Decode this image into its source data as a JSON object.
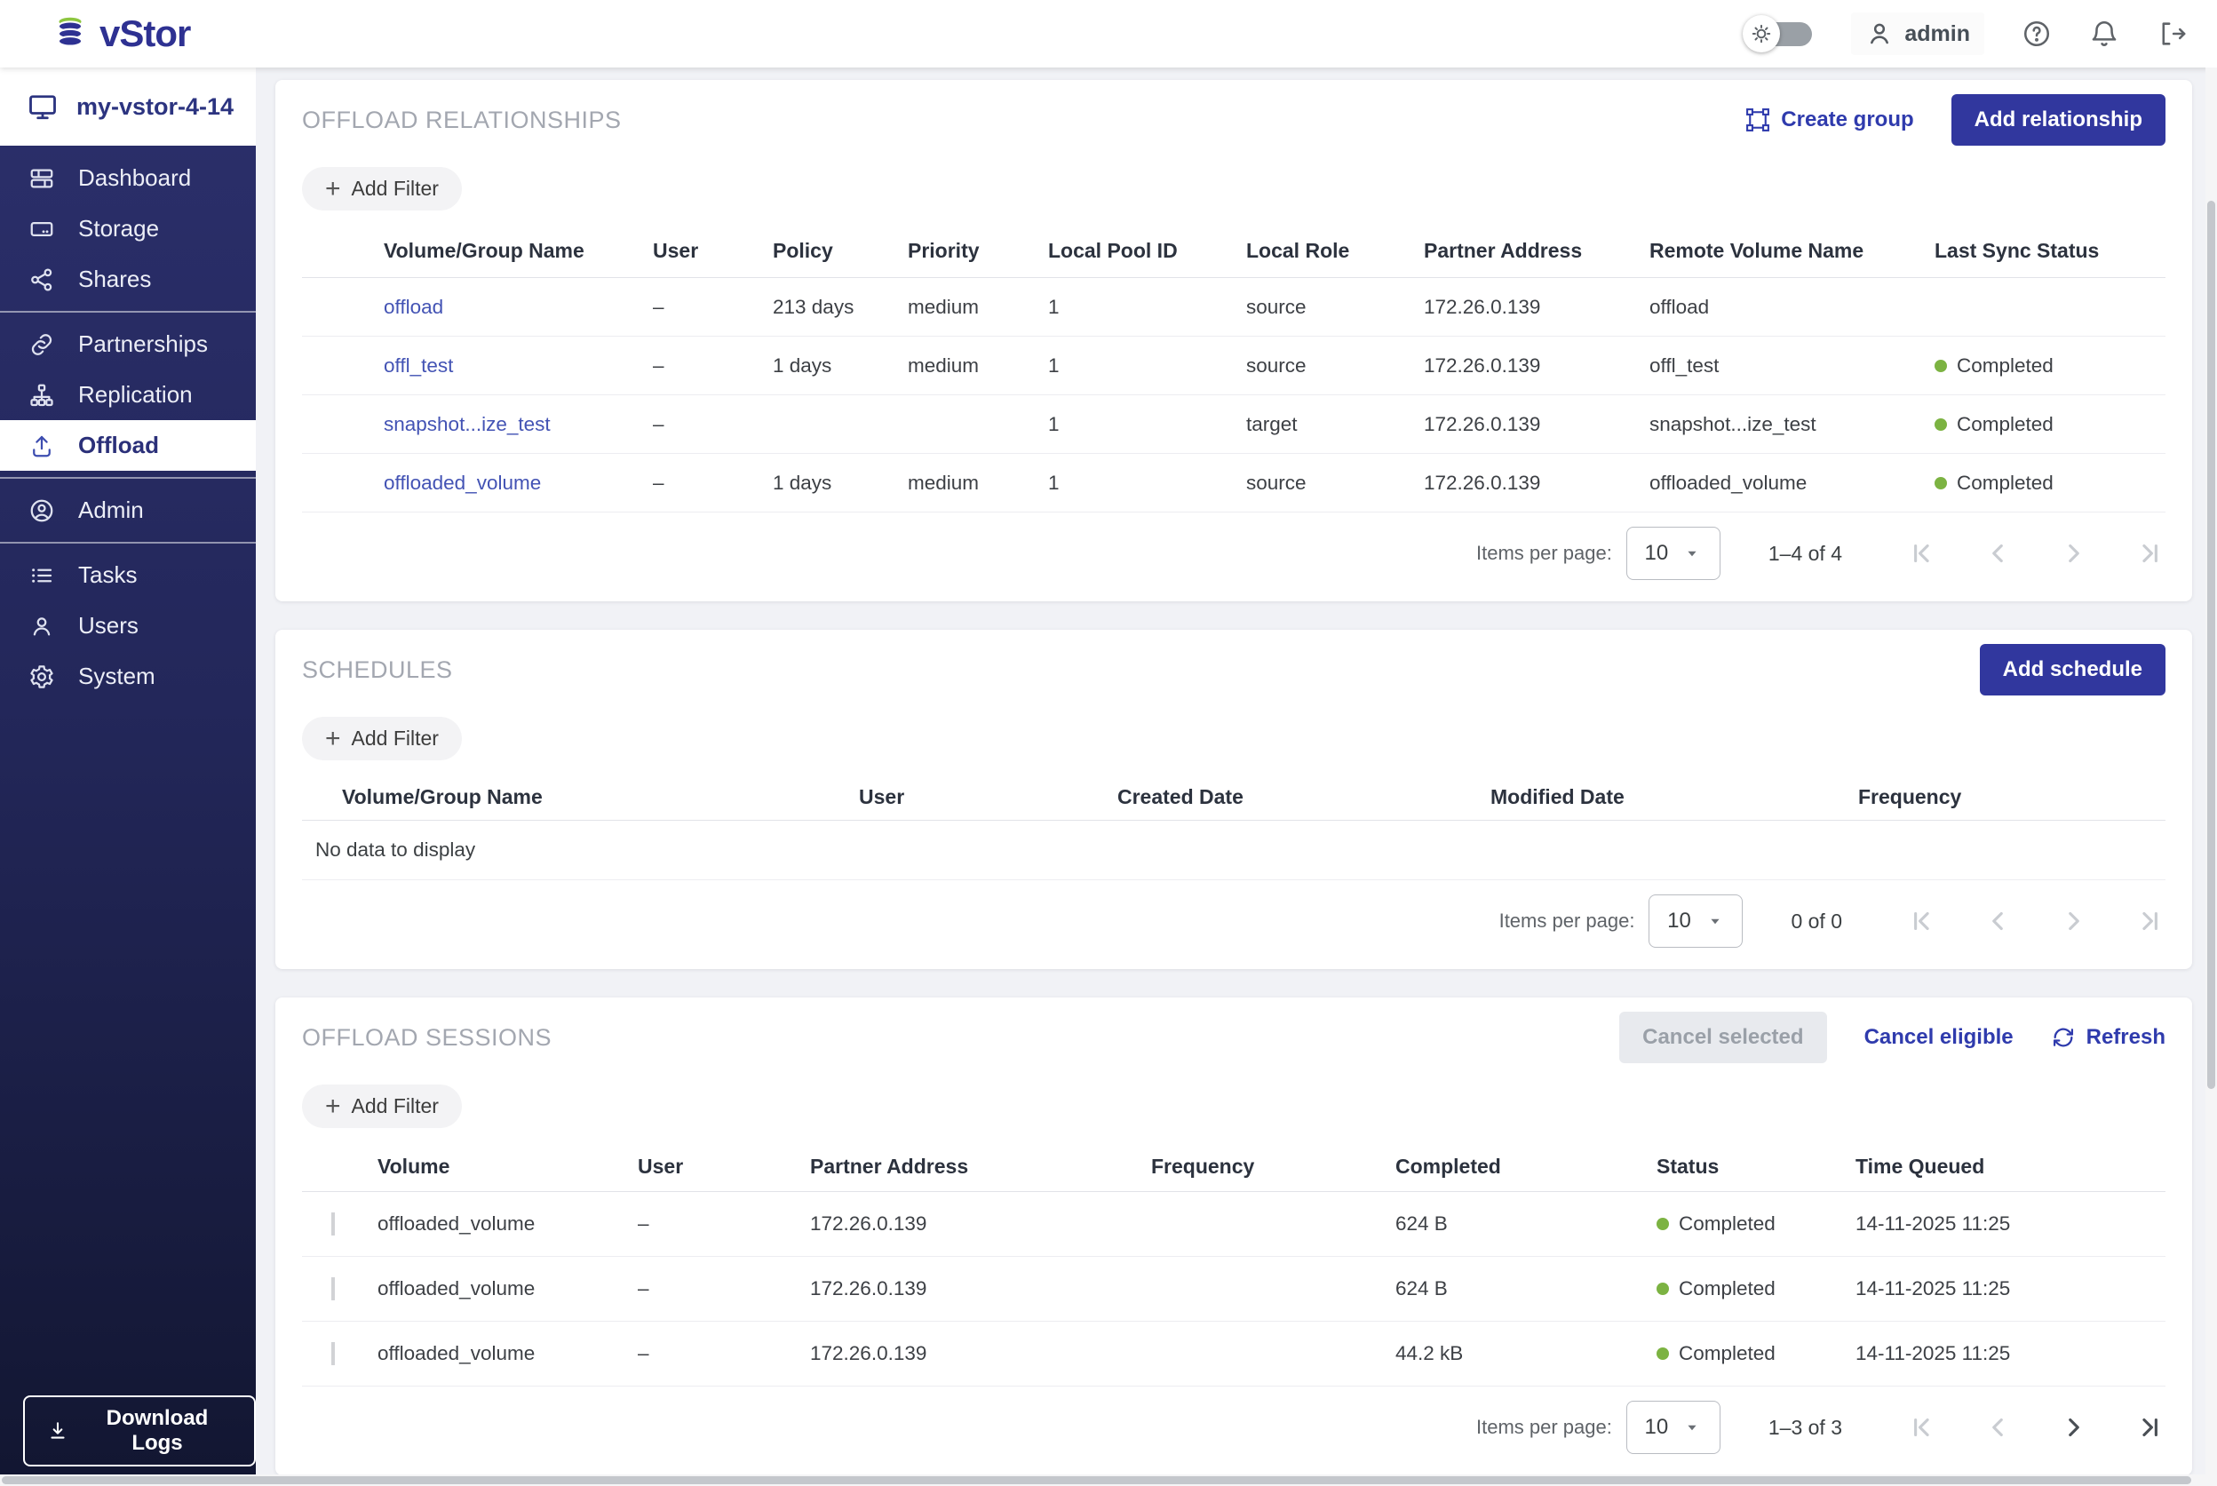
{
  "colors": {
    "accent_blue": "#31379e",
    "link_blue": "#4353b4",
    "logo_blue": "#2e3192",
    "logo_green": "#8dc63f",
    "status_green": "#7cb342",
    "sidebar_top": "#2b2f6b",
    "sidebar_bottom": "#121631"
  },
  "header": {
    "logo_text": "vStor",
    "username": "admin"
  },
  "sidebar": {
    "system_name": "my-vstor-4-14",
    "groups": [
      {
        "items": [
          {
            "label": "Dashboard",
            "icon": "dashboard-icon",
            "selected": false
          },
          {
            "label": "Storage",
            "icon": "storage-icon",
            "selected": false
          },
          {
            "label": "Shares",
            "icon": "shares-icon",
            "selected": false
          }
        ]
      },
      {
        "items": [
          {
            "label": "Partnerships",
            "icon": "partnerships-icon",
            "selected": false
          },
          {
            "label": "Replication",
            "icon": "replication-icon",
            "selected": false
          },
          {
            "label": "Offload",
            "icon": "offload-icon",
            "selected": true
          }
        ]
      },
      {
        "items": [
          {
            "label": "Admin",
            "icon": "admin-icon",
            "selected": false
          }
        ]
      },
      {
        "items": [
          {
            "label": "Tasks",
            "icon": "tasks-icon",
            "selected": false
          },
          {
            "label": "Users",
            "icon": "users-icon",
            "selected": false
          },
          {
            "label": "System",
            "icon": "system-icon",
            "selected": false
          }
        ]
      }
    ],
    "download_logs": "Download Logs"
  },
  "relationships": {
    "title": "OFFLOAD RELATIONSHIPS",
    "create_group": "Create group",
    "add_relationship": "Add relationship",
    "add_filter": "Add Filter",
    "columns": [
      "Volume/Group Name",
      "User",
      "Policy",
      "Priority",
      "Local Pool ID",
      "Local Role",
      "Partner Address",
      "Remote Volume Name",
      "Last Sync Status"
    ],
    "rows": [
      {
        "name": "offload",
        "user": "–",
        "policy": "213 days",
        "priority": "medium",
        "local_pool_id": "1",
        "local_role": "source",
        "partner_address": "172.26.0.139",
        "remote_volume_name": "offload",
        "last_sync_status": ""
      },
      {
        "name": "offl_test",
        "user": "–",
        "policy": "1 days",
        "priority": "medium",
        "local_pool_id": "1",
        "local_role": "source",
        "partner_address": "172.26.0.139",
        "remote_volume_name": "offl_test",
        "last_sync_status": "Completed"
      },
      {
        "name": "snapshot...ize_test",
        "user": "–",
        "policy": "",
        "priority": "",
        "local_pool_id": "1",
        "local_role": "target",
        "partner_address": "172.26.0.139",
        "remote_volume_name": "snapshot...ize_test",
        "last_sync_status": "Completed"
      },
      {
        "name": "offloaded_volume",
        "user": "–",
        "policy": "1 days",
        "priority": "medium",
        "local_pool_id": "1",
        "local_role": "source",
        "partner_address": "172.26.0.139",
        "remote_volume_name": "offloaded_volume",
        "last_sync_status": "Completed"
      }
    ],
    "pagination": {
      "label": "Items per page:",
      "per_page": "10",
      "range": "1–4 of 4",
      "nav_enabled": [
        false,
        false,
        false,
        false
      ]
    }
  },
  "schedules": {
    "title": "SCHEDULES",
    "add_schedule": "Add schedule",
    "add_filter": "Add Filter",
    "columns": [
      "Volume/Group Name",
      "User",
      "Created Date",
      "Modified Date",
      "Frequency"
    ],
    "empty_text": "No data to display",
    "pagination": {
      "label": "Items per page:",
      "per_page": "10",
      "range": "0 of 0",
      "nav_enabled": [
        false,
        false,
        false,
        false
      ]
    }
  },
  "sessions": {
    "title": "OFFLOAD SESSIONS",
    "cancel_selected": "Cancel selected",
    "cancel_eligible": "Cancel eligible",
    "refresh": "Refresh",
    "add_filter": "Add Filter",
    "columns": [
      "Volume",
      "User",
      "Partner Address",
      "Frequency",
      "Completed",
      "Status",
      "Time Queued"
    ],
    "rows": [
      {
        "volume": "offloaded_volume",
        "user": "–",
        "partner_address": "172.26.0.139",
        "frequency": "",
        "completed": "624 B",
        "status": "Completed",
        "time_queued": "14-11-2025 11:25",
        "checked": false
      },
      {
        "volume": "offloaded_volume",
        "user": "–",
        "partner_address": "172.26.0.139",
        "frequency": "",
        "completed": "624 B",
        "status": "Completed",
        "time_queued": "14-11-2025 11:25",
        "checked": false
      },
      {
        "volume": "offloaded_volume",
        "user": "–",
        "partner_address": "172.26.0.139",
        "frequency": "",
        "completed": "44.2 kB",
        "status": "Completed",
        "time_queued": "14-11-2025 11:25",
        "checked": false
      }
    ],
    "pagination": {
      "label": "Items per page:",
      "per_page": "10",
      "range": "1–3 of 3",
      "nav_enabled": [
        false,
        false,
        true,
        true
      ]
    }
  }
}
